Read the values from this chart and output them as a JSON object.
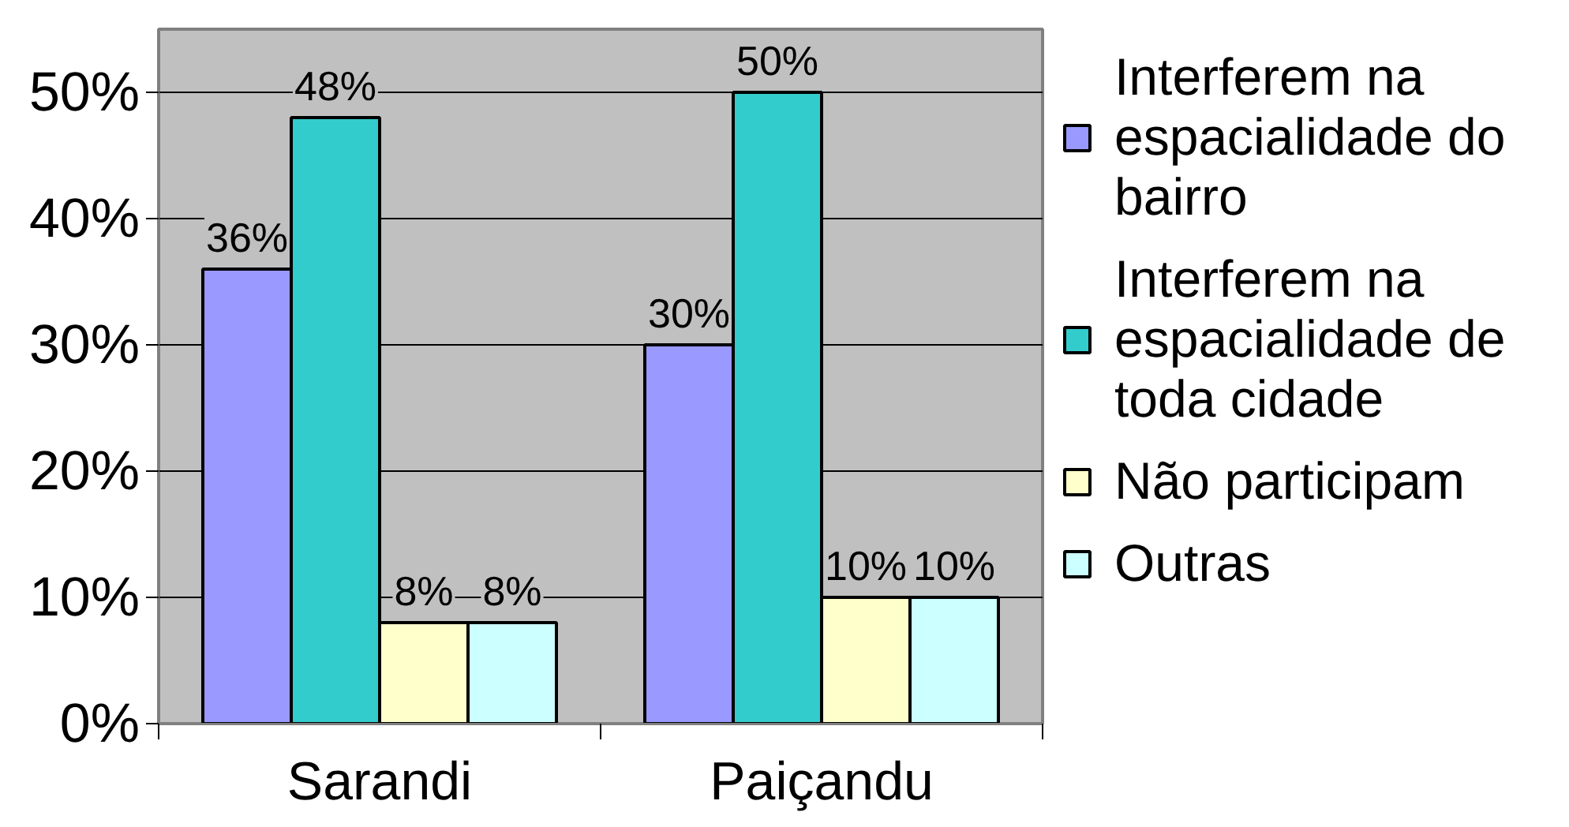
{
  "chart_data": {
    "type": "bar",
    "categories": [
      "Sarandi",
      "Paiçandu"
    ],
    "series": [
      {
        "name": "Interferem na espacialidade do bairro",
        "color": "#9999ff",
        "values": [
          36,
          30
        ],
        "value_labels": [
          "36%",
          "30%"
        ]
      },
      {
        "name": "Interferem na espacialidade de toda cidade",
        "color": "#33cccc",
        "values": [
          48,
          50
        ],
        "value_labels": [
          "48%",
          "50%"
        ]
      },
      {
        "name": "Não participam",
        "color": "#ffffcc",
        "values": [
          8,
          10
        ],
        "value_labels": [
          "8%",
          "10%"
        ]
      },
      {
        "name": "Outras",
        "color": "#ccffff",
        "values": [
          8,
          10
        ],
        "value_labels": [
          "8%",
          "10%"
        ]
      }
    ],
    "ylim": [
      0,
      55
    ],
    "yticks": [
      {
        "value": 0,
        "label": "0%"
      },
      {
        "value": 10,
        "label": "10%"
      },
      {
        "value": 20,
        "label": "20%"
      },
      {
        "value": 30,
        "label": "30%"
      },
      {
        "value": 40,
        "label": "40%"
      },
      {
        "value": 50,
        "label": "50%"
      }
    ],
    "grid": "y",
    "legend": "right"
  }
}
